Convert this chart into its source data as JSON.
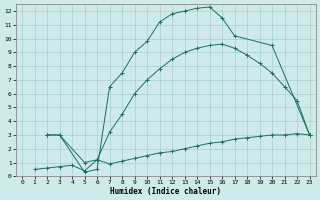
{
  "xlabel": "Humidex (Indice chaleur)",
  "background_color": "#ceeaea",
  "grid_color": "#aacece",
  "line_color": "#1e6e64",
  "xlim": [
    -0.5,
    23.5
  ],
  "ylim": [
    0,
    12.5
  ],
  "xticks": [
    0,
    1,
    2,
    3,
    4,
    5,
    6,
    7,
    8,
    9,
    10,
    11,
    12,
    13,
    14,
    15,
    16,
    17,
    18,
    19,
    20,
    21,
    22,
    23
  ],
  "yticks": [
    0,
    1,
    2,
    3,
    4,
    5,
    6,
    7,
    8,
    9,
    10,
    11,
    12
  ],
  "line1_x": [
    1,
    2,
    3,
    4,
    5,
    6,
    7,
    8,
    9,
    10,
    11,
    12,
    13,
    14,
    15,
    16,
    17,
    18,
    19,
    20,
    21,
    22,
    23
  ],
  "line1_y": [
    0.5,
    0.6,
    0.7,
    0.8,
    0.4,
    1.2,
    0.9,
    1.1,
    1.3,
    1.5,
    1.7,
    1.8,
    2.0,
    2.2,
    2.4,
    2.5,
    2.7,
    2.8,
    2.9,
    3.0,
    3.0,
    3.1,
    3.0
  ],
  "line2_x": [
    2,
    3,
    5,
    6,
    7,
    8,
    9,
    10,
    11,
    12,
    13,
    14,
    15,
    16,
    17,
    20,
    23
  ],
  "line2_y": [
    3.0,
    3.0,
    0.3,
    0.5,
    6.5,
    7.5,
    9.0,
    9.8,
    11.2,
    11.8,
    12.0,
    12.2,
    12.3,
    11.5,
    10.2,
    9.5,
    3.0
  ],
  "line3_x": [
    2,
    3,
    5,
    6,
    7,
    8,
    9,
    10,
    11,
    12,
    13,
    14,
    15,
    16,
    17,
    18,
    19,
    20,
    21,
    22,
    23
  ],
  "line3_y": [
    3.0,
    3.0,
    1.0,
    1.2,
    3.2,
    4.5,
    6.0,
    7.0,
    7.8,
    8.5,
    9.0,
    9.3,
    9.5,
    9.6,
    9.3,
    8.8,
    8.2,
    7.5,
    6.5,
    5.5,
    3.0
  ]
}
